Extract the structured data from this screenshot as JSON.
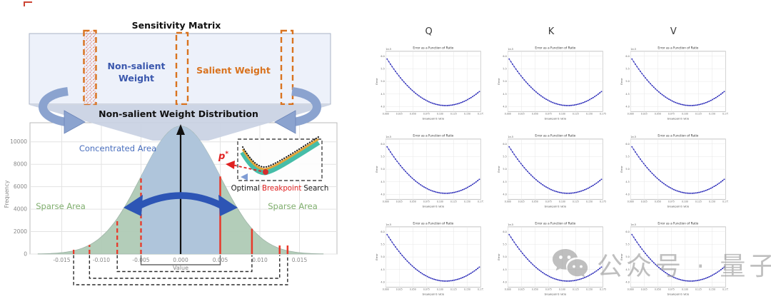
{
  "figure": {
    "sensitivity": {
      "title": "Sensitivity Matrix",
      "non_salient_line1": "Non-salient",
      "non_salient_line2": "Weight",
      "salient_label": "Salient Weight"
    },
    "distribution": {
      "title": "Non-salient Weight Distribution",
      "concentrated_label": "Concentrated Area",
      "sparse_left_label": "Sparse Area",
      "sparse_right_label": "Sparse Area",
      "ylabel": "Frequency",
      "xlabel": "Value",
      "ytick_values": [
        0,
        2000,
        4000,
        6000,
        8000,
        10000
      ],
      "xtick_values": [
        -0.015,
        -0.01,
        -0.005,
        0.0,
        0.005,
        0.01,
        0.015
      ],
      "xtick_labels": [
        "-0.015",
        "-0.010",
        "-0.005",
        "0.000",
        "0.005",
        "0.010",
        "0.015"
      ],
      "gauss": {
        "sigma": 0.005,
        "peak": 11400,
        "ymax": 11700,
        "xmin": -0.018,
        "xmax": 0.018
      },
      "center_half_width": 0.005,
      "breakpoints_left": [
        -0.005,
        -0.008,
        -0.0115,
        -0.0135
      ],
      "breakpoints_right": [
        0.005,
        0.009,
        0.0125,
        0.0135
      ],
      "bracket_pairs": [
        [
          -0.005,
          0.005
        ],
        [
          -0.008,
          0.009
        ],
        [
          -0.0115,
          0.0125
        ],
        [
          -0.0135,
          0.0135
        ]
      ]
    },
    "inset": {
      "p_letter": "p",
      "p_sup": "*",
      "caption_pre": "Optimal",
      "caption_red": "Breakpoint",
      "caption_post": "Search"
    }
  },
  "right_grid": {
    "col_headers": [
      "Q",
      "K",
      "V"
    ],
    "n_rows": 3,
    "plot": {
      "title": "Error as a Function of Ratio",
      "xlabel": "breakpoint ratio",
      "ylabel": "Error",
      "offset_text": "1e-5",
      "xtick_labels": [
        "0.000",
        "0.025",
        "0.050",
        "0.075",
        "0.100",
        "0.125",
        "0.150",
        "0.175"
      ],
      "ytick_labels": [
        "6.0",
        "5.5",
        "5.0",
        "4.5",
        "4.0"
      ],
      "curve": {
        "min_x": 0.63,
        "start_depth": 0.05,
        "min_depth": 0.965,
        "end_depth": 0.68,
        "n_points": 56
      },
      "marker_color": "#2a2ab8"
    }
  },
  "watermark": {
    "text": "公众号 · 量子位",
    "icon": "wechat-icon"
  },
  "colors": {
    "matrix_fill": "#edf1fa",
    "matrix_border": "#a9b3c6",
    "dashed_rect": "#d9731f",
    "non_salient_text": "#3a57ad",
    "salient_text": "#d9731f",
    "funnel": "#c9d2e3",
    "arrow_blue": "#8ba3cf",
    "bell_green": "#adc9b3",
    "bell_blue": "#afc4dc",
    "red_line": "#e8392a",
    "arc_blue": "#2d55b5",
    "concentrated_text": "#4a6fbe",
    "sparse_text": "#7fae6d",
    "inset_teal": "#46bda8",
    "inset_orange": "#e2a43a",
    "p_red": "#e02020"
  },
  "chart_data": [
    {
      "type": "area",
      "title": "Non-salient Weight Distribution",
      "xlabel": "Value",
      "ylabel": "Frequency",
      "xlim": [
        -0.018,
        0.018
      ],
      "ylim": [
        0,
        11700
      ],
      "xticks": [
        -0.015,
        -0.01,
        -0.005,
        0.0,
        0.005,
        0.01,
        0.015
      ],
      "yticks": [
        0,
        2000,
        4000,
        6000,
        8000,
        10000
      ],
      "shape": "gaussian",
      "sigma": 0.005,
      "peak_frequency": 11400,
      "concentrated_region": [
        -0.005,
        0.005
      ],
      "breakpoints_left": [
        -0.005,
        -0.008,
        -0.0115,
        -0.0135
      ],
      "breakpoints_right": [
        0.005,
        0.009,
        0.0125,
        0.0135
      ],
      "annotations": [
        "Concentrated Area",
        "Sparse Area",
        "Sparse Area",
        "Optimal Breakpoint Search",
        "p*"
      ],
      "grid": true
    },
    {
      "type": "scatter",
      "layout": "3x3",
      "columns": [
        "Q",
        "K",
        "V"
      ],
      "title_each": "Error as a Function of Ratio",
      "xlabel": "breakpoint ratio",
      "ylabel": "Error",
      "y_offset_text": "1e-5",
      "x_range": [
        0,
        0.175
      ],
      "curve_shape": {
        "min_x_fraction": 0.63,
        "start_depth": 0.05,
        "min_depth": 0.965,
        "end_depth": 0.68
      },
      "series_style": "blue dotted U-shaped curve, minimum right of center",
      "grid": true,
      "legend": false
    }
  ]
}
